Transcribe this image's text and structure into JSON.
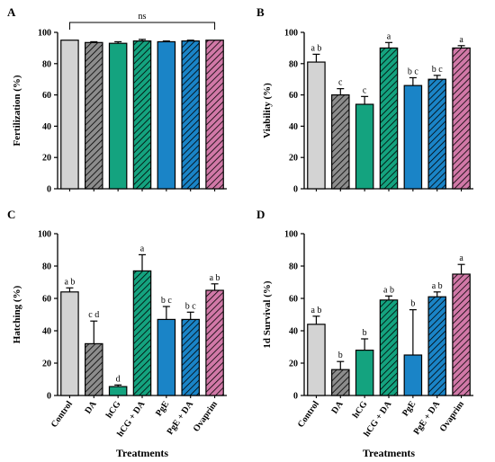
{
  "treatments": [
    "Control",
    "DA",
    "hCG",
    "hCG + DA",
    "PgE",
    "PgE + DA",
    "Ovaprim"
  ],
  "style": {
    "colors": [
      "#d3d3d3",
      "#8c8c8c",
      "#14a37f",
      "#14a37f",
      "#1a84c7",
      "#1a84c7",
      "#d178a7"
    ],
    "hatched": [
      false,
      true,
      false,
      true,
      false,
      true,
      true
    ]
  },
  "chart_data": [
    {
      "type": "bar",
      "panel": "A",
      "title": "",
      "xlabel": "",
      "ylabel": "Fertilization (%)",
      "ylim": [
        0,
        100
      ],
      "yticks": [
        0,
        20,
        40,
        60,
        80,
        100
      ],
      "categories": [
        "Control",
        "DA",
        "hCG",
        "hCG + DA",
        "PgE",
        "PgE + DA",
        "Ovaprim"
      ],
      "values": [
        95,
        93.5,
        93,
        94.5,
        94,
        94.5,
        95
      ],
      "errors": [
        0,
        0.5,
        1,
        1,
        0.5,
        0.5,
        0
      ],
      "letters": [
        "",
        "",
        "",
        "",
        "",
        "",
        ""
      ],
      "annotation": "ns"
    },
    {
      "type": "bar",
      "panel": "B",
      "title": "",
      "xlabel": "",
      "ylabel": "Viability (%)",
      "ylim": [
        0,
        100
      ],
      "yticks": [
        0,
        20,
        40,
        60,
        80,
        100
      ],
      "categories": [
        "Control",
        "DA",
        "hCG",
        "hCG + DA",
        "PgE",
        "PgE + DA",
        "Ovaprim"
      ],
      "values": [
        81,
        60,
        54,
        90,
        66,
        70,
        90
      ],
      "errors": [
        5,
        4,
        5,
        3.5,
        5,
        2.5,
        1.5
      ],
      "letters": [
        "a b",
        "c",
        "c",
        "a",
        "b c",
        "b c",
        "a"
      ],
      "annotation": ""
    },
    {
      "type": "bar",
      "panel": "C",
      "title": "",
      "xlabel": "Treatments",
      "ylabel": "Hatching (%)",
      "ylim": [
        0,
        100
      ],
      "yticks": [
        0,
        20,
        40,
        60,
        80,
        100
      ],
      "categories": [
        "Control",
        "DA",
        "hCG",
        "hCG + DA",
        "PgE",
        "PgE + DA",
        "Ovaprim"
      ],
      "values": [
        64,
        32,
        5.5,
        77,
        47,
        47,
        65
      ],
      "errors": [
        2.5,
        14,
        1,
        10,
        8,
        4.5,
        4
      ],
      "letters": [
        "a b",
        "c d",
        "d",
        "a",
        "b c",
        "b c",
        "a b"
      ],
      "annotation": ""
    },
    {
      "type": "bar",
      "panel": "D",
      "title": "",
      "xlabel": "Treatments",
      "ylabel": "1d Survival (%)",
      "ylim": [
        0,
        100
      ],
      "yticks": [
        0,
        20,
        40,
        60,
        80,
        100
      ],
      "categories": [
        "Control",
        "DA",
        "hCG",
        "hCG + DA",
        "PgE",
        "PgE + DA",
        "Ovaprim"
      ],
      "values": [
        44,
        16,
        28,
        59,
        25,
        61,
        75
      ],
      "errors": [
        5,
        5,
        7,
        2.5,
        28,
        3,
        6
      ],
      "letters": [
        "a b",
        "b",
        "b",
        "a b",
        "b",
        "a b",
        "a"
      ],
      "annotation": ""
    }
  ]
}
